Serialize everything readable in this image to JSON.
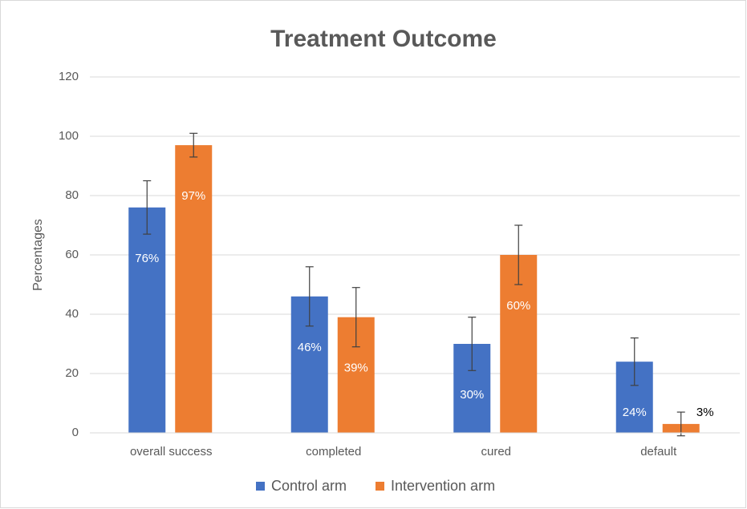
{
  "chart_data": {
    "type": "bar",
    "title": "Treatment Outcome",
    "y_label": "Percentages",
    "categories": [
      "overall success",
      "completed",
      "cured",
      "default"
    ],
    "series": [
      {
        "name": "Control arm",
        "color": "#4472c4",
        "values": [
          76,
          46,
          30,
          24
        ],
        "errors": [
          9,
          10,
          9,
          8
        ],
        "value_labels": [
          "76%",
          "46%",
          "30%",
          "24%"
        ]
      },
      {
        "name": "Intervention arm",
        "color": "#ed7d31",
        "values": [
          97,
          39,
          60,
          3
        ],
        "errors": [
          4,
          10,
          10,
          4
        ],
        "value_labels": [
          "97%",
          "39%",
          "60%",
          "3%"
        ]
      }
    ],
    "ylim": [
      0,
      120
    ],
    "yticks": [
      0,
      20,
      40,
      60,
      80,
      100,
      120
    ],
    "grid": true,
    "legend": "bottom"
  }
}
